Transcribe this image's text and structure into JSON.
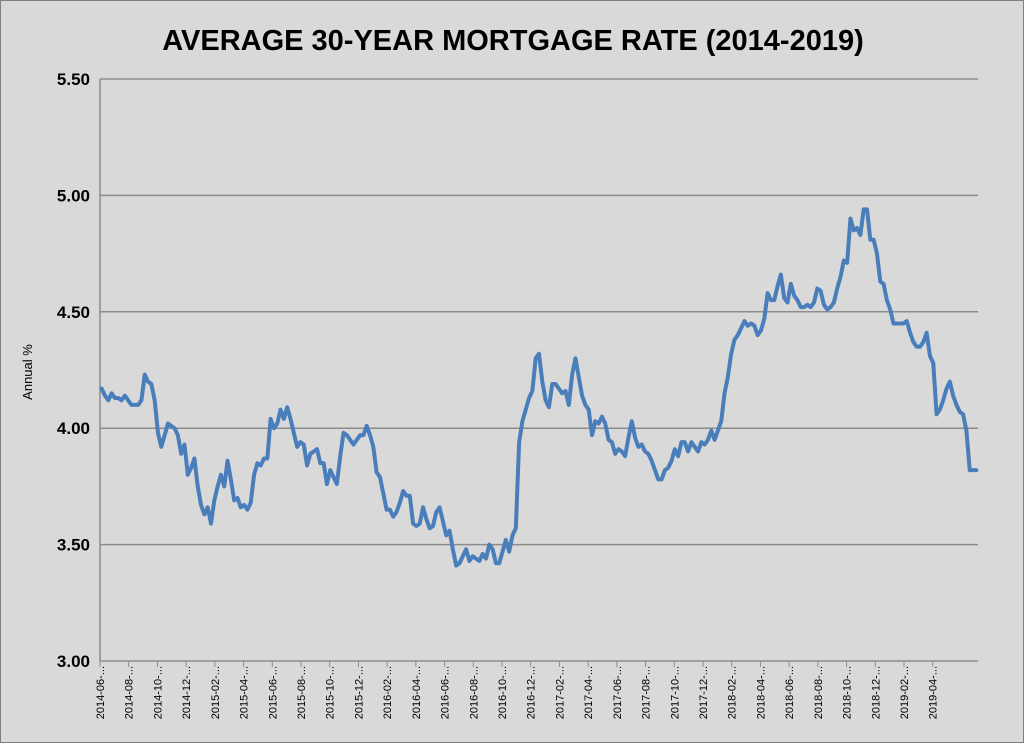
{
  "chart_data": {
    "type": "line",
    "title": "AVERAGE 30-YEAR MORTGAGE RATE (2014-2019)",
    "xlabel": "",
    "ylabel": "Annual %",
    "ylim": [
      3.0,
      5.5
    ],
    "y_ticks": [
      "3.00",
      "3.50",
      "4.00",
      "4.50",
      "5.00",
      "5.50"
    ],
    "grid": true,
    "line_color": "#4a7ebb",
    "x_ticks": [
      "2014-06-...",
      "2014-08-...",
      "2014-10-...",
      "2014-12-...",
      "2015-02-...",
      "2015-04-...",
      "2015-06-...",
      "2015-08-...",
      "2015-10-...",
      "2015-12-...",
      "2016-02-...",
      "2016-04-...",
      "2016-06-...",
      "2016-08-...",
      "2016-10-...",
      "2016-12-...",
      "2017-02-...",
      "2017-04-...",
      "2017-06-...",
      "2017-08-...",
      "2017-10-...",
      "2017-12-...",
      "2018-02-...",
      "2018-04-...",
      "2018-06-...",
      "2018-08-...",
      "2018-10-...",
      "2018-12-...",
      "2019-02-...",
      "2019-04-..."
    ],
    "points_per_tick": 8.6667,
    "values": [
      4.17,
      4.14,
      4.12,
      4.15,
      4.13,
      4.13,
      4.12,
      4.14,
      4.12,
      4.1,
      4.1,
      4.1,
      4.12,
      4.23,
      4.2,
      4.19,
      4.12,
      3.98,
      3.92,
      3.97,
      4.02,
      4.01,
      4.0,
      3.97,
      3.89,
      3.93,
      3.8,
      3.83,
      3.87,
      3.75,
      3.67,
      3.63,
      3.66,
      3.59,
      3.69,
      3.75,
      3.8,
      3.75,
      3.86,
      3.78,
      3.69,
      3.7,
      3.66,
      3.67,
      3.65,
      3.68,
      3.8,
      3.85,
      3.84,
      3.87,
      3.87,
      4.04,
      4.0,
      4.02,
      4.08,
      4.04,
      4.09,
      4.04,
      3.98,
      3.92,
      3.94,
      3.93,
      3.84,
      3.89,
      3.9,
      3.91,
      3.85,
      3.85,
      3.76,
      3.82,
      3.79,
      3.76,
      3.88,
      3.98,
      3.97,
      3.95,
      3.93,
      3.95,
      3.97,
      3.97,
      4.01,
      3.97,
      3.92,
      3.81,
      3.79,
      3.72,
      3.65,
      3.65,
      3.62,
      3.64,
      3.68,
      3.73,
      3.71,
      3.71,
      3.59,
      3.58,
      3.59,
      3.66,
      3.61,
      3.57,
      3.58,
      3.64,
      3.66,
      3.6,
      3.54,
      3.56,
      3.48,
      3.41,
      3.42,
      3.45,
      3.48,
      3.43,
      3.45,
      3.44,
      3.43,
      3.46,
      3.44,
      3.5,
      3.48,
      3.42,
      3.42,
      3.47,
      3.52,
      3.47,
      3.54,
      3.57,
      3.94,
      4.03,
      4.08,
      4.13,
      4.16,
      4.3,
      4.32,
      4.2,
      4.12,
      4.09,
      4.19,
      4.19,
      4.17,
      4.15,
      4.16,
      4.1,
      4.23,
      4.3,
      4.22,
      4.14,
      4.1,
      4.08,
      3.97,
      4.03,
      4.02,
      4.05,
      4.02,
      3.95,
      3.94,
      3.89,
      3.91,
      3.9,
      3.88,
      3.96,
      4.03,
      3.96,
      3.92,
      3.93,
      3.9,
      3.89,
      3.86,
      3.82,
      3.78,
      3.78,
      3.82,
      3.83,
      3.86,
      3.91,
      3.88,
      3.94,
      3.94,
      3.9,
      3.94,
      3.92,
      3.9,
      3.94,
      3.93,
      3.95,
      3.99,
      3.95,
      3.99,
      4.03,
      4.15,
      4.22,
      4.32,
      4.38,
      4.4,
      4.43,
      4.46,
      4.44,
      4.45,
      4.44,
      4.4,
      4.42,
      4.47,
      4.58,
      4.55,
      4.55,
      4.61,
      4.66,
      4.56,
      4.54,
      4.62,
      4.57,
      4.55,
      4.52,
      4.52,
      4.53,
      4.52,
      4.54,
      4.6,
      4.59,
      4.53,
      4.51,
      4.52,
      4.54,
      4.6,
      4.65,
      4.72,
      4.71,
      4.9,
      4.85,
      4.86,
      4.83,
      4.94,
      4.94,
      4.81,
      4.81,
      4.75,
      4.63,
      4.62,
      4.55,
      4.51,
      4.45,
      4.45,
      4.45,
      4.45,
      4.46,
      4.41,
      4.37,
      4.35,
      4.35,
      4.37,
      4.41,
      4.31,
      4.28,
      4.06,
      4.08,
      4.12,
      4.17,
      4.2,
      4.14,
      4.1,
      4.07,
      4.06,
      3.99,
      3.82,
      3.82,
      3.82
    ]
  }
}
